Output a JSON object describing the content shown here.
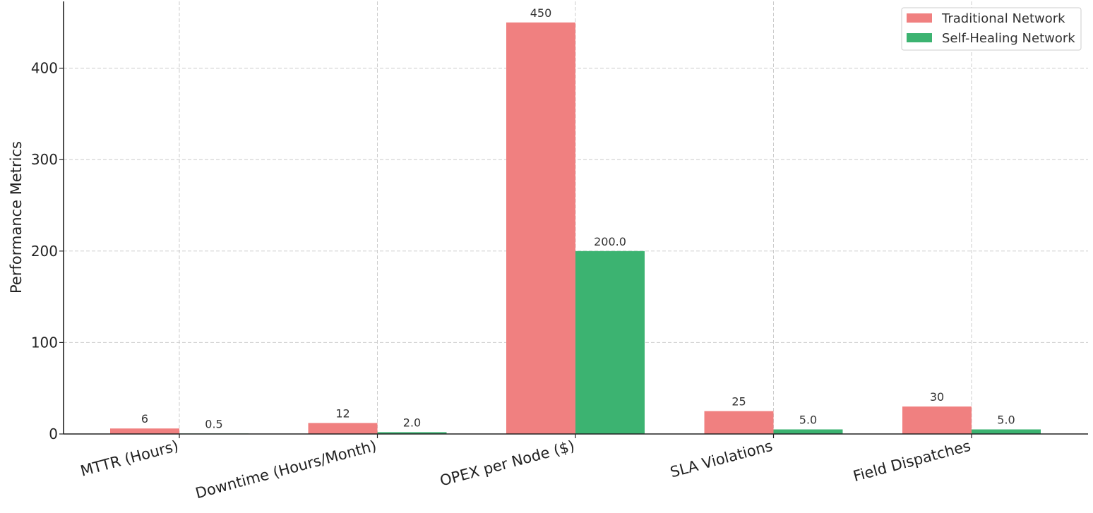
{
  "chart_data": {
    "type": "bar",
    "title": "",
    "xlabel": "",
    "ylabel": "Performance Metrics",
    "categories": [
      "MTTR (Hours)",
      "Downtime (Hours/Month)",
      "OPEX per Node ($)",
      "SLA Violations",
      "Field Dispatches"
    ],
    "series": [
      {
        "name": "Traditional Network",
        "color": "#f08080",
        "values": [
          6,
          12,
          450,
          25,
          30
        ],
        "labels": [
          "6",
          "12",
          "450",
          "25",
          "30"
        ]
      },
      {
        "name": "Self-Healing Network",
        "color": "#3cb371",
        "values": [
          0.5,
          2.0,
          200.0,
          5.0,
          5.0
        ],
        "labels": [
          "0.5",
          "2.0",
          "200.0",
          "5.0",
          "5.0"
        ]
      }
    ],
    "ylim": [
      0,
      473
    ],
    "yticks": [
      0,
      100,
      200,
      300,
      400
    ],
    "grid": true,
    "legend_position": "top-right"
  }
}
